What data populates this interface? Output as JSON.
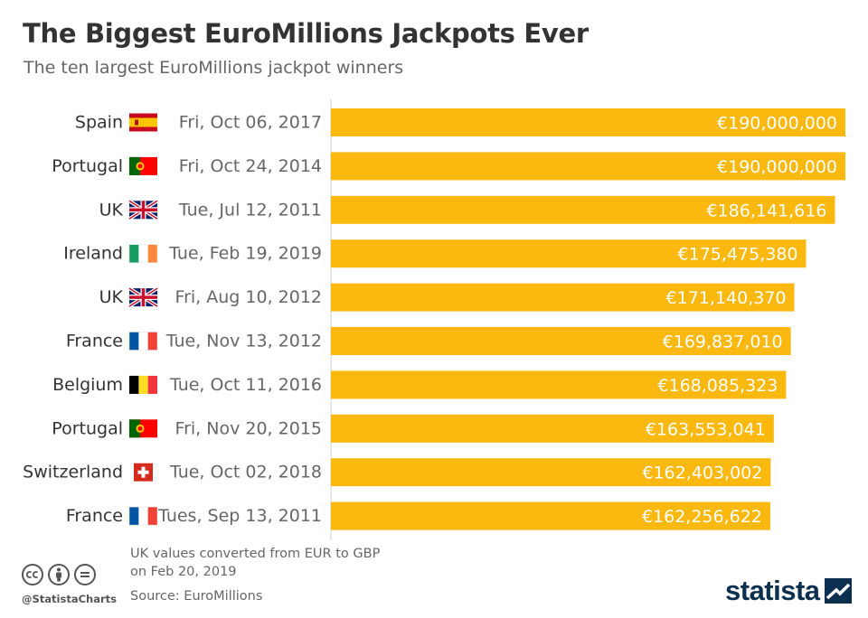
{
  "header": {
    "title": "The Biggest EuroMillions Jackpots Ever",
    "subtitle": "The ten largest EuroMillions jackpot winners"
  },
  "chart_data": {
    "type": "bar",
    "orientation": "horizontal",
    "title": "The Biggest EuroMillions Jackpots Ever",
    "subtitle": "The ten largest EuroMillions jackpot winners",
    "xlim": [
      0,
      190000000
    ],
    "grid": false,
    "categories": [
      {
        "country": "Spain",
        "date": "Fri, Oct 06, 2017",
        "flag": "spain-flag"
      },
      {
        "country": "Portugal",
        "date": "Fri, Oct 24, 2014",
        "flag": "portugal-flag"
      },
      {
        "country": "UK",
        "date": "Tue, Jul 12, 2011",
        "flag": "uk-flag"
      },
      {
        "country": "Ireland",
        "date": "Tue, Feb 19, 2019",
        "flag": "ireland-flag"
      },
      {
        "country": "UK",
        "date": "Fri, Aug 10, 2012",
        "flag": "uk-flag"
      },
      {
        "country": "France",
        "date": "Tue, Nov 13, 2012",
        "flag": "france-flag"
      },
      {
        "country": "Belgium",
        "date": "Tue, Oct 11, 2016",
        "flag": "belgium-flag"
      },
      {
        "country": "Portugal",
        "date": "Fri, Nov 20, 2015",
        "flag": "portugal-flag"
      },
      {
        "country": "Switzerland",
        "date": "Tue, Oct 02, 2018",
        "flag": "switzerland-flag"
      },
      {
        "country": "France",
        "date": "Tues, Sep 13, 2011",
        "flag": "france-flag"
      }
    ],
    "values": [
      190000000,
      190000000,
      186141616,
      175475380,
      171140370,
      169837010,
      168085323,
      163553041,
      162403002,
      162256622
    ],
    "value_labels": [
      "€190,000,000",
      "€190,000,000",
      "€186,141,616",
      "€175,475,380",
      "€171,140,370",
      "€169,837,010",
      "€168,085,323",
      "€163,553,041",
      "€162,403,002",
      "€162,256,622"
    ],
    "bar_color": "#fbb80f",
    "label_color": "#ffffff"
  },
  "footer": {
    "note_line1": "UK values converted from EUR to GBP",
    "note_line2": "on Feb 20, 2019",
    "source": "Source: EuroMillions",
    "handle": "@StatistaCharts",
    "logo_text": "statista",
    "license_icons": [
      "cc-icon",
      "by-icon",
      "nd-icon"
    ]
  },
  "colors": {
    "brand": "#0b2f4e",
    "bar": "#fbb80f",
    "text": "#333333",
    "muted": "#666666"
  }
}
